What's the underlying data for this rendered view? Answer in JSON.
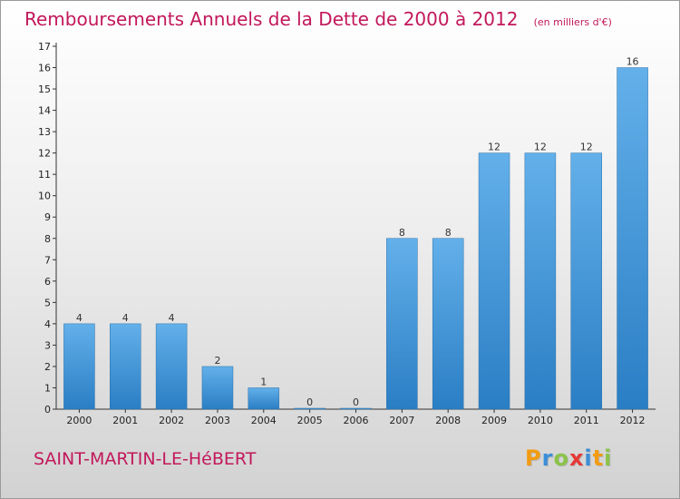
{
  "title": "Remboursements Annuels de la Dette de 2000 à 2012",
  "unit_note": "(en milliers d'€)",
  "commune": "SAINT-MARTIN-LE-HéBERT",
  "logo": {
    "letters": [
      "P",
      "r",
      "o",
      "x",
      "i",
      "t",
      "i"
    ],
    "colors": [
      "#f39c12",
      "#3b8ed8",
      "#8bc34a",
      "#e53935",
      "#3b8ed8",
      "#f39c12",
      "#8bc34a"
    ]
  },
  "colors": {
    "title": "#c2185b",
    "bar_top": "#63b0ea",
    "bar_bottom": "#2a7ec4"
  },
  "chart_data": {
    "type": "bar",
    "title": "Remboursements Annuels de la Dette de 2000 à 2012",
    "subtitle": "(en milliers d'€)",
    "xlabel": "",
    "ylabel": "",
    "categories": [
      "2000",
      "2001",
      "2002",
      "2003",
      "2004",
      "2005",
      "2006",
      "2007",
      "2008",
      "2009",
      "2010",
      "2011",
      "2012"
    ],
    "values": [
      4,
      4,
      4,
      2,
      1,
      0,
      0,
      8,
      8,
      12,
      12,
      12,
      16
    ],
    "ylim": [
      0,
      17
    ],
    "yticks": [
      0,
      1,
      2,
      3,
      4,
      5,
      6,
      7,
      8,
      9,
      10,
      11,
      12,
      13,
      14,
      15,
      16,
      17
    ],
    "grid": false,
    "legend": "none"
  }
}
